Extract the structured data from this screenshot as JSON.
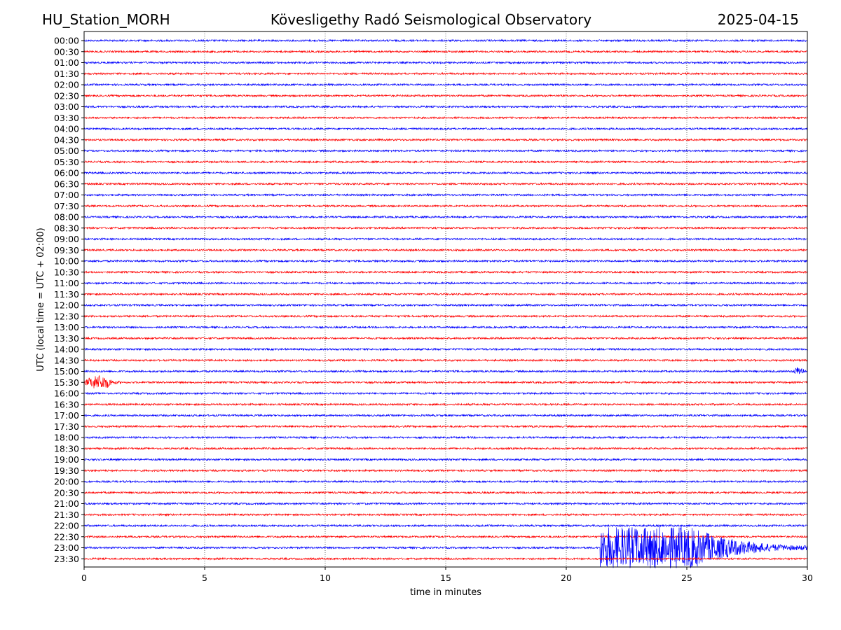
{
  "header": {
    "station": "HU_Station_MORH",
    "observatory": "Kövesligethy Radó Seismological Observatory",
    "date": "2025-04-15"
  },
  "chart_data": {
    "type": "line",
    "title": "Kövesligethy Radó Seismological Observatory",
    "xlabel": "time in minutes",
    "ylabel": "UTC (local time = UTC + 02:00)",
    "xlim": [
      0,
      30
    ],
    "x_ticks": [
      "0",
      "5",
      "10",
      "15",
      "20",
      "25",
      "30"
    ],
    "grid": "vertical dotted",
    "colors": {
      "even": "#0000ff",
      "odd": "#ff0000"
    },
    "rows": [
      "00:00",
      "00:30",
      "01:00",
      "01:30",
      "02:00",
      "02:30",
      "03:00",
      "03:30",
      "04:00",
      "04:30",
      "05:00",
      "05:30",
      "06:00",
      "06:30",
      "07:00",
      "07:30",
      "08:00",
      "08:30",
      "09:00",
      "09:30",
      "10:00",
      "10:30",
      "11:00",
      "11:30",
      "12:00",
      "12:30",
      "13:00",
      "13:30",
      "14:00",
      "14:30",
      "15:00",
      "15:30",
      "16:00",
      "16:30",
      "17:00",
      "17:30",
      "18:00",
      "18:30",
      "19:00",
      "19:30",
      "20:00",
      "20:30",
      "21:00",
      "21:30",
      "22:00",
      "22:30",
      "23:00",
      "23:30"
    ],
    "events": [
      {
        "row": "15:00",
        "start_min": 29.4,
        "end_min": 30.0,
        "amplitude": 0.6
      },
      {
        "row": "15:30",
        "start_min": 0.0,
        "end_min": 1.5,
        "amplitude": 0.9
      },
      {
        "row": "23:00",
        "start_min": 21.4,
        "end_min": 30.0,
        "amplitude": 2.5
      }
    ]
  }
}
